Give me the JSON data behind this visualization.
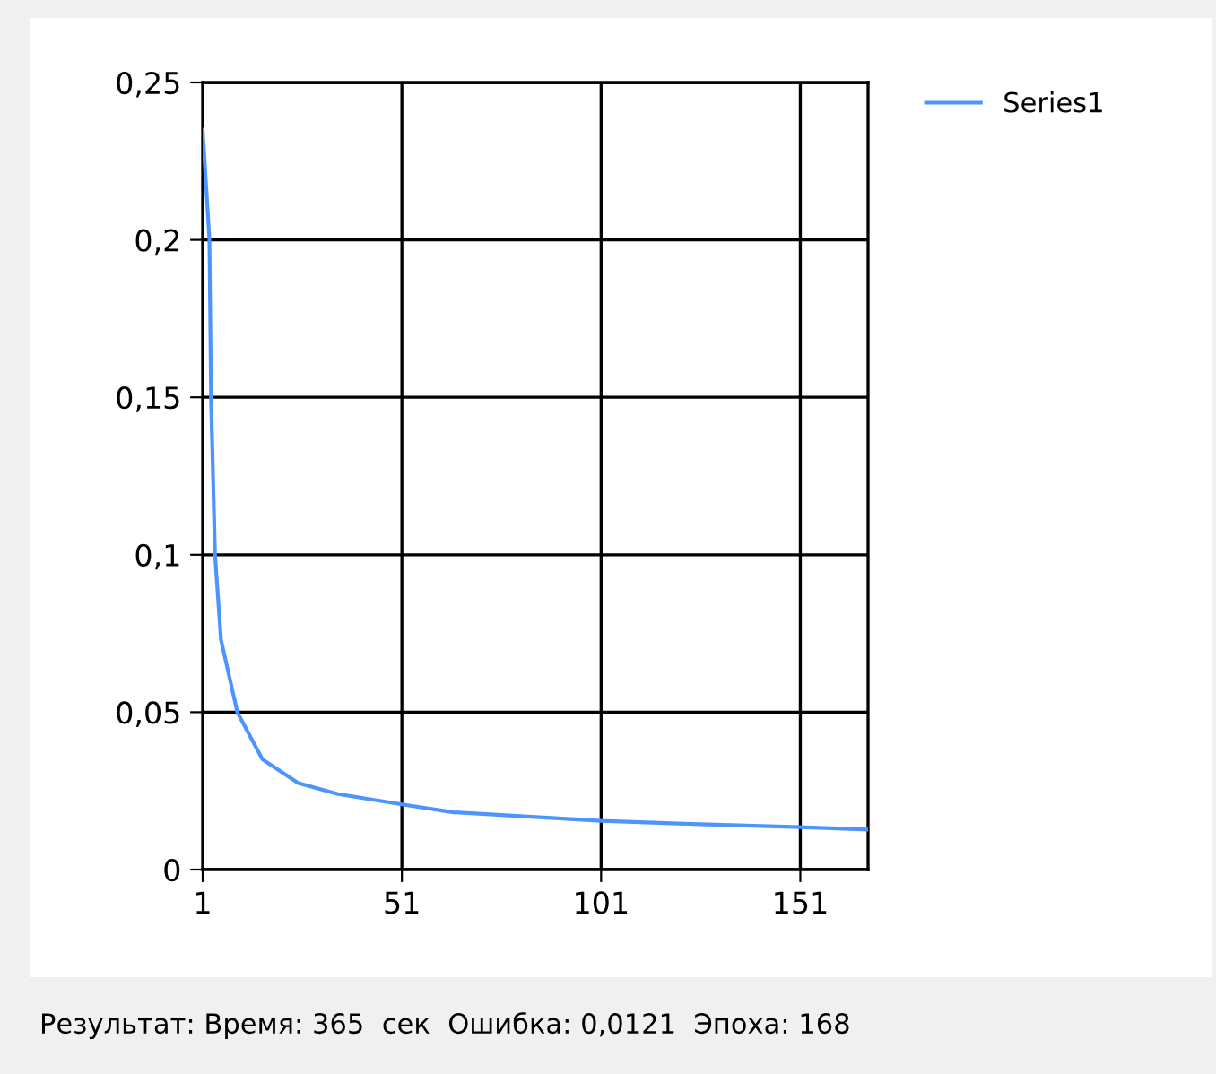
{
  "chart_data": {
    "type": "line",
    "x": [
      1,
      2.7,
      3.1,
      4.1,
      5.6,
      9.7,
      16,
      25,
      35,
      51,
      64,
      101,
      126,
      151,
      168
    ],
    "series": [
      {
        "name": "Series1",
        "color": "#4d94ff",
        "values": [
          0.235,
          0.2,
          0.15,
          0.1,
          0.073,
          0.05,
          0.035,
          0.0275,
          0.024,
          0.0207,
          0.0182,
          0.0155,
          0.0144,
          0.0135,
          0.0127
        ]
      }
    ],
    "xlim": [
      1,
      168
    ],
    "xticks": [
      1,
      51,
      101,
      151
    ],
    "ylim": [
      0,
      0.25
    ],
    "yticks": [
      {
        "value": 0,
        "label": "0"
      },
      {
        "value": 0.05,
        "label": "0,05"
      },
      {
        "value": 0.1,
        "label": "0,1"
      },
      {
        "value": 0.15,
        "label": "0,15"
      },
      {
        "value": 0.2,
        "label": "0,2"
      },
      {
        "value": 0.25,
        "label": "0,25"
      }
    ],
    "grid": true,
    "legend": "top right",
    "marker": "none",
    "line_style": "solid",
    "annotations": [
      "Результат: Время: 365  сек  Ошибка: 0,0121  Эпоха: 168"
    ]
  }
}
